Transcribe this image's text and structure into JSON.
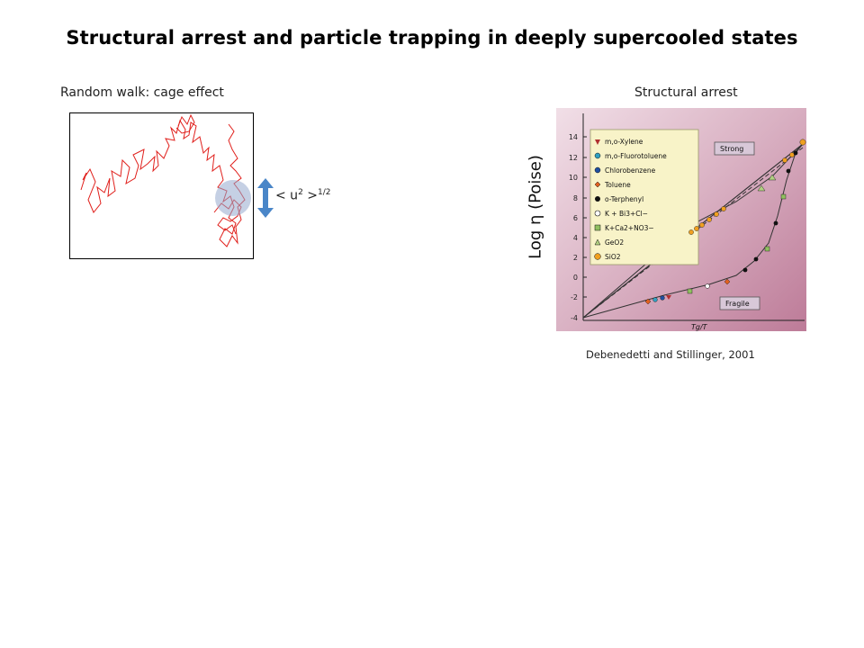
{
  "slide": {
    "title": "Structural arrest and particle trapping in deeply supercooled states"
  },
  "left_panel": {
    "heading": "Random walk: cage effect",
    "msd_label": "< u",
    "msd_sup1": "2",
    "msd_mid": " >",
    "msd_sup2": "1/2",
    "walk_color": "#e0201c",
    "cage_color": "#a6b6d6",
    "arrow_color": "#4a86c8"
  },
  "right_panel": {
    "heading": "Structural arrest",
    "y_label": "Log η (Poise)",
    "credit": "Debenedetti and Stillinger, 2001",
    "plot": {
      "y_ticks": [
        "14",
        "12",
        "10",
        "8",
        "6",
        "4",
        "2",
        "0",
        "-2",
        "-4"
      ],
      "x_label": "Tg/T",
      "strong_label": "Strong",
      "fragile_label": "Fragile",
      "legend": [
        {
          "name": "m,o-Xylene",
          "marker": "triangle-down",
          "color": "#b03030"
        },
        {
          "name": "m,o-Fluorotoluene",
          "marker": "circle",
          "color": "#30a0c0"
        },
        {
          "name": "Chlorobenzene",
          "marker": "circle",
          "color": "#2050a0"
        },
        {
          "name": "Toluene",
          "marker": "diamond",
          "color": "#e06020"
        },
        {
          "name": "o-Terphenyl",
          "marker": "circle",
          "color": "#111111"
        },
        {
          "name": "K + Bi3+Cl−",
          "marker": "circle-open",
          "color": "#ffffff"
        },
        {
          "name": "K+Ca2+NO3−",
          "marker": "square",
          "color": "#90c060"
        },
        {
          "name": "GeO2",
          "marker": "triangle",
          "color": "#b0d080"
        },
        {
          "name": "SiO2",
          "marker": "circle",
          "color": "#f0a020"
        }
      ]
    }
  }
}
